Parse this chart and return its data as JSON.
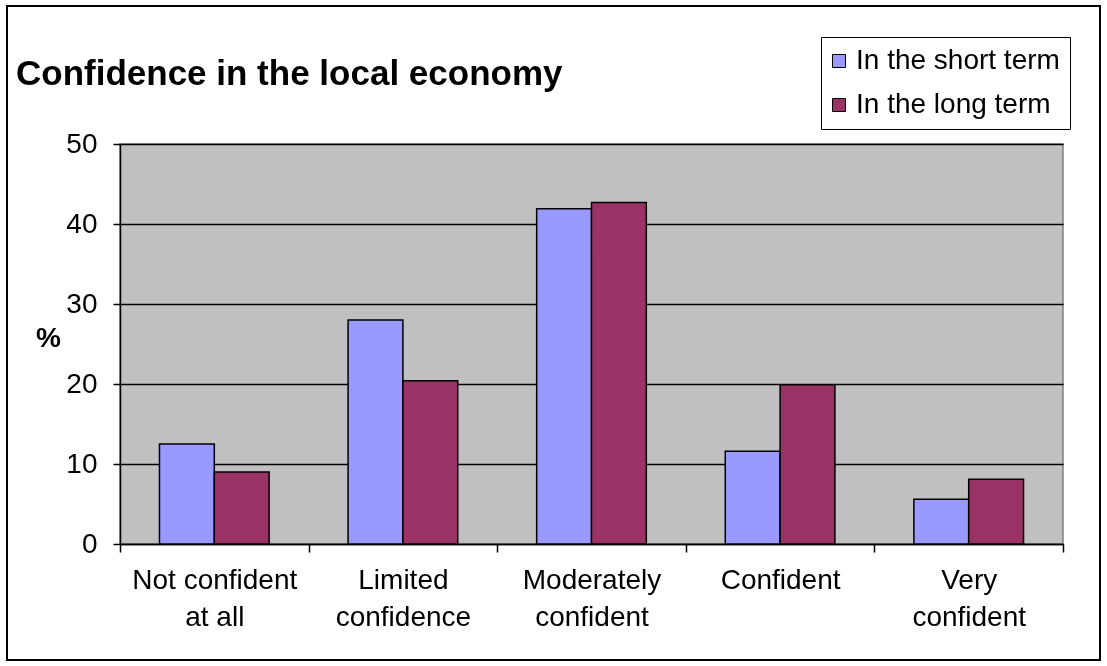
{
  "chart_data": {
    "type": "bar",
    "title": "Confidence in the local economy",
    "ylabel": "%",
    "categories": [
      "Not confident at all",
      "Limited confidence",
      "Moderately confident",
      "Confident",
      "Very confident"
    ],
    "series": [
      {
        "name": "In the short term",
        "color": "#9999ff",
        "values": [
          12.5,
          28.0,
          41.9,
          11.6,
          5.6
        ]
      },
      {
        "name": "In the long term",
        "color": "#993366",
        "values": [
          9.0,
          20.4,
          42.7,
          19.9,
          8.1
        ]
      }
    ],
    "ylim": [
      0,
      50
    ],
    "yticks": [
      0,
      10,
      20,
      30,
      40,
      50
    ],
    "grid": "y",
    "legend": "top right"
  }
}
